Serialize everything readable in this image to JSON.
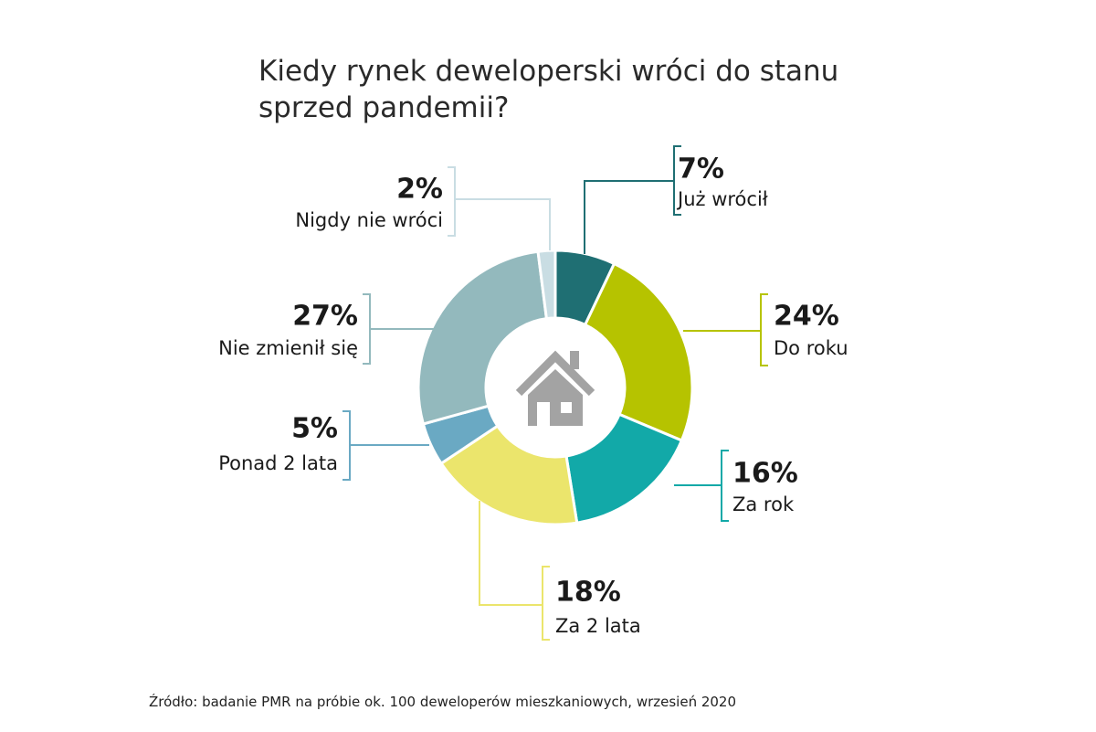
{
  "chart_data": {
    "type": "donut",
    "title": "Kiedy rynek deweloperski wróci do stanu sprzed pandemii?",
    "categories": [
      "Już wrócił",
      "Do roku",
      "Za rok",
      "Za 2 lata",
      "Ponad 2 lata",
      "Nie zmienił się",
      "Nigdy nie wróci"
    ],
    "values": [
      7,
      24,
      16,
      18,
      5,
      27,
      2
    ],
    "value_labels": [
      "7%",
      "24%",
      "16%",
      "18%",
      "5%",
      "27%",
      "2%"
    ],
    "colors": [
      "#1f6f73",
      "#b6c300",
      "#12a9a8",
      "#ebe56c",
      "#6aa9c3",
      "#93b9bd",
      "#c9dde3"
    ],
    "source": "Źródło: badanie PMR na próbie ok. 100 deweloperów mieszkaniowych, wrzesień 2020"
  }
}
